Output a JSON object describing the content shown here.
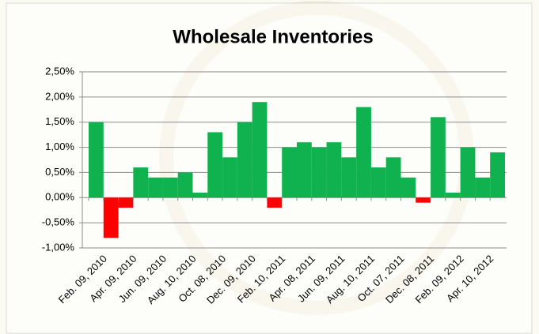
{
  "chart_data": {
    "type": "bar",
    "title": "Wholesale Inventories",
    "categories": [
      "Feb. 09, 2010",
      null,
      "Apr. 09, 2010",
      null,
      "Jun. 09, 2010",
      null,
      "Aug. 10, 2010",
      null,
      "Oct. 08, 2010",
      null,
      "Dec. 09, 2010",
      null,
      "Feb. 10, 2011",
      null,
      "Apr. 08, 2011",
      null,
      "Jun. 09, 2011",
      null,
      "Aug. 10, 2011",
      null,
      "Oct. 07, 2011",
      null,
      "Dec. 08, 2011",
      null,
      "Feb. 09, 2012",
      null,
      "Apr. 10, 2012",
      null
    ],
    "values": [
      1.5,
      -0.8,
      -0.2,
      0.6,
      0.4,
      0.4,
      0.5,
      0.1,
      1.3,
      0.8,
      1.5,
      1.9,
      -0.2,
      1.0,
      1.1,
      1.0,
      1.1,
      0.8,
      1.8,
      0.6,
      0.8,
      0.4,
      -0.1,
      1.6,
      0.1,
      1.0,
      0.4,
      0.9
    ],
    "color": "#10b14f",
    "negative_color": "#ff0000",
    "ylim": [
      -1,
      2.5
    ],
    "yticks": [
      {
        "value": -1,
        "label": "-1,00%"
      },
      {
        "value": -0.5,
        "label": "-0,50%"
      },
      {
        "value": 0,
        "label": "0,00%"
      },
      {
        "value": 0.5,
        "label": "0,50%"
      },
      {
        "value": 1,
        "label": "1,00%"
      },
      {
        "value": 1.5,
        "label": "1,50%"
      },
      {
        "value": 2,
        "label": "2,00%"
      },
      {
        "value": 2.5,
        "label": "2,50%"
      }
    ],
    "grid": true
  }
}
